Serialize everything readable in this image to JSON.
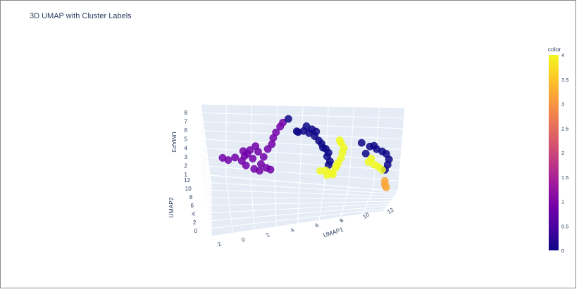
{
  "chart_data": {
    "type": "scatter",
    "title": "3D UMAP with Cluster Labels",
    "axes": {
      "x": {
        "label": "UMAP1",
        "ticks": [
          "-2",
          "0",
          "2",
          "4",
          "6",
          "8",
          "10",
          "12"
        ]
      },
      "y": {
        "label": "UMAP2",
        "ticks": [
          "0",
          "2",
          "4",
          "6",
          "8",
          "10",
          "12"
        ]
      },
      "z": {
        "label": "UMAP3",
        "ticks": [
          "1",
          "2",
          "3",
          "4",
          "5",
          "6",
          "7",
          "8"
        ]
      }
    },
    "colorbar": {
      "title": "color",
      "ticks": [
        "0",
        "0.5",
        "1",
        "1.5",
        "2",
        "2.5",
        "3",
        "3.5",
        "4"
      ],
      "range": [
        0,
        4
      ]
    },
    "colorscale": [
      "#0d0887",
      "#46039f",
      "#7201a8",
      "#9c179e",
      "#bd3786",
      "#d8576b",
      "#ed7953",
      "#fb9f3a",
      "#fdca26",
      "#f0f921"
    ],
    "series": [
      {
        "cluster": 1,
        "color": "#7201a8",
        "points": [
          [
            -0.6,
            9.6,
            4.0
          ],
          [
            -0.2,
            9.4,
            3.9
          ],
          [
            0.3,
            9.4,
            4.2
          ],
          [
            0.8,
            9.6,
            3.8
          ],
          [
            1.2,
            9.5,
            4.6
          ],
          [
            1.6,
            9.6,
            4.1
          ],
          [
            1.1,
            9.3,
            3.5
          ],
          [
            2.0,
            9.7,
            4.8
          ],
          [
            2.4,
            9.7,
            4.3
          ],
          [
            2.7,
            9.8,
            5.1
          ],
          [
            3.0,
            9.9,
            5.6
          ],
          [
            3.1,
            10.0,
            6.2
          ],
          [
            3.3,
            10.0,
            6.8
          ],
          [
            1.4,
            9.5,
            5.0
          ],
          [
            1.8,
            9.6,
            5.4
          ],
          [
            0.9,
            9.4,
            4.9
          ],
          [
            2.2,
            9.6,
            3.6
          ],
          [
            2.6,
            9.7,
            3.2
          ],
          [
            2.9,
            9.8,
            3.0
          ],
          [
            1.7,
            9.5,
            3.1
          ],
          [
            2.1,
            9.6,
            2.9
          ],
          [
            1.0,
            9.4,
            4.4
          ],
          [
            3.6,
            10.1,
            7.4
          ],
          [
            3.8,
            10.2,
            7.8
          ]
        ]
      },
      {
        "cluster": 0,
        "color": "#0d0887",
        "points": [
          [
            4.2,
            10.3,
            8.2
          ],
          [
            4.8,
            10.8,
            6.8
          ],
          [
            5.3,
            10.8,
            6.9
          ],
          [
            5.7,
            10.6,
            6.8
          ],
          [
            6.1,
            10.7,
            6.5
          ],
          [
            6.4,
            10.6,
            6.1
          ],
          [
            5.9,
            10.7,
            7.2
          ],
          [
            6.6,
            10.6,
            5.8
          ],
          [
            6.9,
            10.6,
            5.3
          ],
          [
            7.1,
            10.6,
            4.9
          ],
          [
            6.7,
            10.6,
            5.4
          ],
          [
            7.0,
            10.6,
            4.5
          ],
          [
            7.2,
            10.6,
            4.0
          ],
          [
            7.1,
            10.6,
            3.6
          ],
          [
            9.5,
            10.5,
            6.3
          ],
          [
            10.1,
            10.4,
            6.0
          ],
          [
            10.6,
            10.3,
            5.8
          ],
          [
            11.0,
            10.3,
            5.6
          ],
          [
            11.3,
            10.2,
            5.4
          ],
          [
            10.4,
            10.5,
            6.1
          ],
          [
            11.5,
            10.2,
            4.8
          ],
          [
            11.4,
            10.2,
            4.2
          ],
          [
            11.2,
            10.3,
            3.6
          ],
          [
            9.8,
            10.4,
            5.2
          ],
          [
            4.9,
            10.9,
            6.7
          ],
          [
            5.5,
            10.6,
            7.5
          ],
          [
            6.2,
            10.7,
            7.0
          ]
        ]
      },
      {
        "cluster": 4,
        "color": "#f0f921",
        "points": [
          [
            6.5,
            10.6,
            2.9
          ],
          [
            6.9,
            10.6,
            3.0
          ],
          [
            7.3,
            10.6,
            2.8
          ],
          [
            7.6,
            10.7,
            3.3
          ],
          [
            7.8,
            10.7,
            3.9
          ],
          [
            8.0,
            10.8,
            4.4
          ],
          [
            8.1,
            10.8,
            5.0
          ],
          [
            8.2,
            10.8,
            5.5
          ],
          [
            8.0,
            10.8,
            6.0
          ],
          [
            7.9,
            10.7,
            6.3
          ],
          [
            7.4,
            10.7,
            2.6
          ],
          [
            7.0,
            10.6,
            2.5
          ],
          [
            7.7,
            10.7,
            3.6
          ],
          [
            10.0,
            10.4,
            4.3
          ],
          [
            10.4,
            10.3,
            4.1
          ],
          [
            10.7,
            10.3,
            3.9
          ],
          [
            11.0,
            10.2,
            3.6
          ],
          [
            10.2,
            10.4,
            4.7
          ]
        ]
      },
      {
        "cluster": 3,
        "color": "#fca636",
        "points": [
          [
            11.2,
            10.2,
            2.4
          ],
          [
            11.2,
            10.2,
            2.0
          ],
          [
            11.3,
            10.2,
            1.7
          ]
        ]
      }
    ]
  }
}
